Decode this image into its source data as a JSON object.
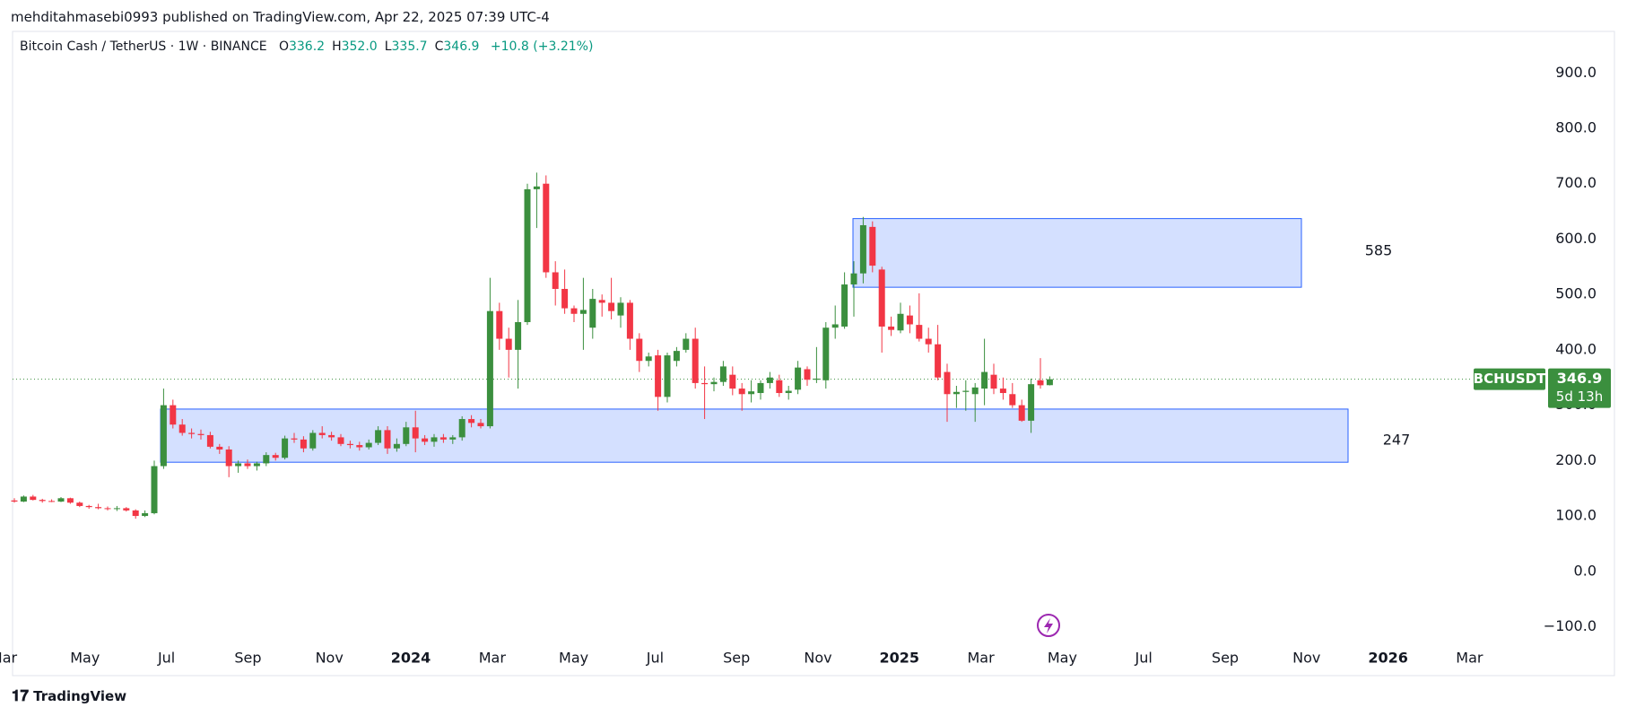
{
  "header": "mehditahmasebi0993 published on TradingView.com, Apr 22, 2025 07:39 UTC-4",
  "brand": "TradingView",
  "chart_data": {
    "type": "candlestick",
    "title": "Bitcoin Cash / TetherUS · 1W · BINANCE",
    "ohlc_legend": [
      {
        "key": "O",
        "value": "336.2"
      },
      {
        "key": "H",
        "value": "352.0"
      },
      {
        "key": "L",
        "value": "335.7"
      },
      {
        "key": "C",
        "value": "346.9"
      }
    ],
    "change": "+10.8 (+3.21%)",
    "symbol": "BCHUSDT",
    "last_price": 346.9,
    "countdown": "5d 13h",
    "up_color": "#3b8f3e",
    "down_color": "#f23645",
    "grid": false,
    "open": [
      128,
      126,
      135,
      129,
      127,
      126,
      132,
      124,
      118,
      116,
      114,
      113,
      114,
      110,
      100,
      105,
      190,
      300,
      265,
      250,
      248,
      246,
      225,
      220,
      190,
      195,
      190,
      195,
      210,
      205,
      240,
      238,
      222,
      250,
      246,
      242,
      230,
      228,
      224,
      232,
      255,
      222,
      230,
      260,
      240,
      234,
      242,
      238,
      242,
      275,
      268,
      262,
      470,
      420,
      400,
      450,
      690,
      700,
      540,
      510,
      475,
      465,
      440,
      490,
      485,
      462,
      485,
      420,
      380,
      390,
      315,
      380,
      400,
      420,
      340,
      338,
      342,
      355,
      330,
      320,
      322,
      340,
      345,
      322,
      328,
      365,
      346,
      345,
      440,
      442,
      518,
      538,
      622,
      545,
      442,
      435,
      462,
      445,
      420,
      410,
      360,
      320,
      324,
      320,
      330,
      355,
      330,
      320,
      300,
      272,
      345,
      336.2
    ],
    "high": [
      132,
      137,
      138,
      131,
      130,
      134,
      133,
      126,
      120,
      122,
      117,
      118,
      116,
      112,
      110,
      200,
      330,
      310,
      275,
      258,
      256,
      252,
      230,
      226,
      200,
      202,
      198,
      215,
      214,
      245,
      250,
      244,
      255,
      262,
      252,
      248,
      236,
      234,
      238,
      262,
      262,
      240,
      270,
      290,
      246,
      248,
      248,
      246,
      280,
      282,
      275,
      530,
      485,
      440,
      490,
      700,
      720,
      715,
      560,
      545,
      480,
      530,
      510,
      500,
      530,
      495,
      490,
      430,
      395,
      400,
      395,
      405,
      430,
      440,
      370,
      350,
      380,
      370,
      340,
      345,
      345,
      360,
      355,
      335,
      380,
      370,
      405,
      450,
      480,
      540,
      560,
      640,
      632,
      550,
      460,
      485,
      480,
      502,
      440,
      445,
      375,
      335,
      345,
      340,
      420,
      375,
      350,
      340,
      310,
      348,
      385,
      352.0
    ],
    "low": [
      124,
      125,
      128,
      124,
      125,
      125,
      122,
      116,
      113,
      112,
      110,
      109,
      108,
      95,
      98,
      103,
      185,
      258,
      245,
      240,
      238,
      222,
      212,
      170,
      178,
      185,
      182,
      190,
      200,
      202,
      232,
      215,
      218,
      240,
      236,
      226,
      222,
      218,
      220,
      228,
      212,
      216,
      226,
      215,
      228,
      225,
      232,
      230,
      236,
      260,
      258,
      258,
      400,
      350,
      330,
      445,
      620,
      530,
      480,
      465,
      450,
      400,
      420,
      460,
      455,
      440,
      400,
      360,
      370,
      290,
      305,
      370,
      395,
      330,
      275,
      325,
      335,
      318,
      290,
      305,
      310,
      330,
      315,
      310,
      320,
      335,
      340,
      330,
      420,
      438,
      460,
      520,
      540,
      395,
      425,
      430,
      430,
      415,
      395,
      345,
      270,
      295,
      290,
      270,
      300,
      320,
      310,
      295,
      270,
      250,
      330,
      335.7
    ],
    "close": [
      126,
      135,
      129,
      127,
      126,
      132,
      124,
      118,
      116,
      114,
      113,
      114,
      110,
      100,
      105,
      190,
      300,
      265,
      250,
      248,
      246,
      225,
      220,
      190,
      195,
      190,
      195,
      210,
      205,
      240,
      238,
      222,
      250,
      246,
      242,
      230,
      228,
      224,
      232,
      255,
      222,
      230,
      260,
      240,
      234,
      242,
      238,
      242,
      275,
      268,
      262,
      470,
      420,
      400,
      450,
      690,
      695,
      540,
      510,
      475,
      465,
      472,
      492,
      485,
      470,
      485,
      420,
      380,
      388,
      315,
      390,
      398,
      420,
      340,
      338,
      342,
      370,
      330,
      320,
      325,
      340,
      350,
      322,
      326,
      368,
      346,
      348,
      440,
      446,
      518,
      538,
      625,
      552,
      442,
      436,
      465,
      446,
      420,
      410,
      350,
      320,
      324,
      326,
      332,
      360,
      330,
      322,
      300,
      272,
      338,
      336,
      346.9
    ],
    "ylim": [
      -130,
      975
    ],
    "yticks": [
      {
        "value": -100,
        "label": "−100.0"
      },
      {
        "value": 0,
        "label": "0.0"
      },
      {
        "value": 100,
        "label": "100.0"
      },
      {
        "value": 200,
        "label": "200.0"
      },
      {
        "value": 300,
        "label": "300.0"
      },
      {
        "value": 400,
        "label": "400.0"
      },
      {
        "value": 500,
        "label": "500.0"
      },
      {
        "value": 600,
        "label": "600.0"
      },
      {
        "value": 700,
        "label": "700.0"
      },
      {
        "value": 800,
        "label": "800.0"
      },
      {
        "value": 900,
        "label": "900.0"
      }
    ],
    "xticks": [
      "Mar",
      "May",
      "Jul",
      "Sep",
      "Nov",
      "2024",
      "Mar",
      "May",
      "Jul",
      "Sep",
      "Nov",
      "2025",
      "Mar",
      "May",
      "Jul",
      "Sep",
      "Nov",
      "2026",
      "Mar"
    ],
    "zones": [
      {
        "label": "585",
        "top": 637,
        "bottom": 513
      },
      {
        "label": "247",
        "top": 293,
        "bottom": 197
      }
    ]
  }
}
